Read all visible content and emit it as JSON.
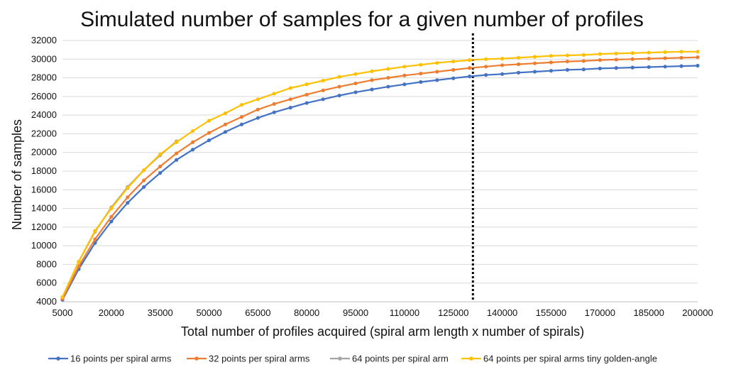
{
  "chart_data": {
    "type": "line",
    "title": "Simulated number of samples for a given number of profiles",
    "xlabel": "Total number of profiles acquired (spiral arm length x number of spirals)",
    "ylabel": "Number of samples",
    "xlim": [
      5000,
      200000
    ],
    "ylim": [
      4000,
      32000
    ],
    "x_ticks": [
      "5000",
      "20000",
      "35000",
      "50000",
      "65000",
      "80000",
      "95000",
      "110000",
      "125000",
      "140000",
      "155000",
      "170000",
      "185000",
      "200000"
    ],
    "y_ticks": [
      "4000",
      "6000",
      "8000",
      "10000",
      "12000",
      "14000",
      "16000",
      "18000",
      "20000",
      "22000",
      "24000",
      "26000",
      "28000",
      "30000",
      "32000"
    ],
    "grid": true,
    "legend_position": "bottom",
    "vertical_marker": {
      "x": 131000,
      "style": "dotted",
      "color": "#000000"
    },
    "series": [
      {
        "name": "16 points per spiral arms",
        "color": "#4472C4",
        "x": [
          5000,
          10000,
          15000,
          20000,
          25000,
          30000,
          35000,
          40000,
          45000,
          50000,
          55000,
          60000,
          65000,
          70000,
          75000,
          80000,
          85000,
          90000,
          95000,
          100000,
          105000,
          110000,
          115000,
          120000,
          125000,
          130000,
          135000,
          140000,
          145000,
          150000,
          155000,
          160000,
          165000,
          170000,
          175000,
          180000,
          185000,
          190000,
          195000,
          200000
        ],
        "values": [
          4200,
          7500,
          10300,
          12600,
          14600,
          16300,
          17800,
          19200,
          20300,
          21300,
          22200,
          23000,
          23700,
          24300,
          24800,
          25300,
          25700,
          26100,
          26450,
          26750,
          27050,
          27300,
          27550,
          27750,
          27950,
          28150,
          28300,
          28400,
          28550,
          28650,
          28750,
          28850,
          28900,
          29000,
          29050,
          29100,
          29150,
          29200,
          29250,
          29300
        ]
      },
      {
        "name": "32 points per spiral arms",
        "color": "#ED7D31",
        "x": [
          5000,
          10000,
          15000,
          20000,
          25000,
          30000,
          35000,
          40000,
          45000,
          50000,
          55000,
          60000,
          65000,
          70000,
          75000,
          80000,
          85000,
          90000,
          95000,
          100000,
          105000,
          110000,
          115000,
          120000,
          125000,
          130000,
          135000,
          140000,
          145000,
          150000,
          155000,
          160000,
          165000,
          170000,
          175000,
          180000,
          185000,
          190000,
          195000,
          200000
        ],
        "values": [
          4300,
          7800,
          10700,
          13100,
          15200,
          17000,
          18500,
          19900,
          21100,
          22100,
          23000,
          23800,
          24600,
          25200,
          25700,
          26200,
          26650,
          27050,
          27400,
          27750,
          28000,
          28250,
          28450,
          28650,
          28850,
          29050,
          29200,
          29350,
          29450,
          29550,
          29650,
          29750,
          29800,
          29900,
          29950,
          30000,
          30050,
          30100,
          30150,
          30200
        ]
      },
      {
        "name": "64 points per spiral arm",
        "color": "#A5A5A5",
        "x": [
          5000,
          10000,
          15000,
          20000,
          25000,
          30000,
          35000,
          40000
        ],
        "values": [
          4500,
          8300,
          11500,
          14100,
          16300,
          18100,
          19700,
          21200
        ]
      },
      {
        "name": "64 points per spiral arms tiny golden-angle",
        "color": "#FFC000",
        "x": [
          5000,
          10000,
          15000,
          20000,
          25000,
          30000,
          35000,
          40000,
          45000,
          50000,
          55000,
          60000,
          65000,
          70000,
          75000,
          80000,
          85000,
          90000,
          95000,
          100000,
          105000,
          110000,
          115000,
          120000,
          125000,
          130000,
          135000,
          140000,
          145000,
          150000,
          155000,
          160000,
          165000,
          170000,
          175000,
          180000,
          185000,
          190000,
          195000,
          200000
        ],
        "values": [
          4500,
          8300,
          11600,
          14000,
          16200,
          18100,
          19800,
          21100,
          22300,
          23400,
          24200,
          25100,
          25700,
          26300,
          26900,
          27300,
          27700,
          28100,
          28400,
          28700,
          28950,
          29200,
          29400,
          29600,
          29750,
          29900,
          30000,
          30050,
          30150,
          30250,
          30350,
          30400,
          30450,
          30550,
          30600,
          30650,
          30700,
          30750,
          30800,
          30800
        ]
      }
    ]
  }
}
